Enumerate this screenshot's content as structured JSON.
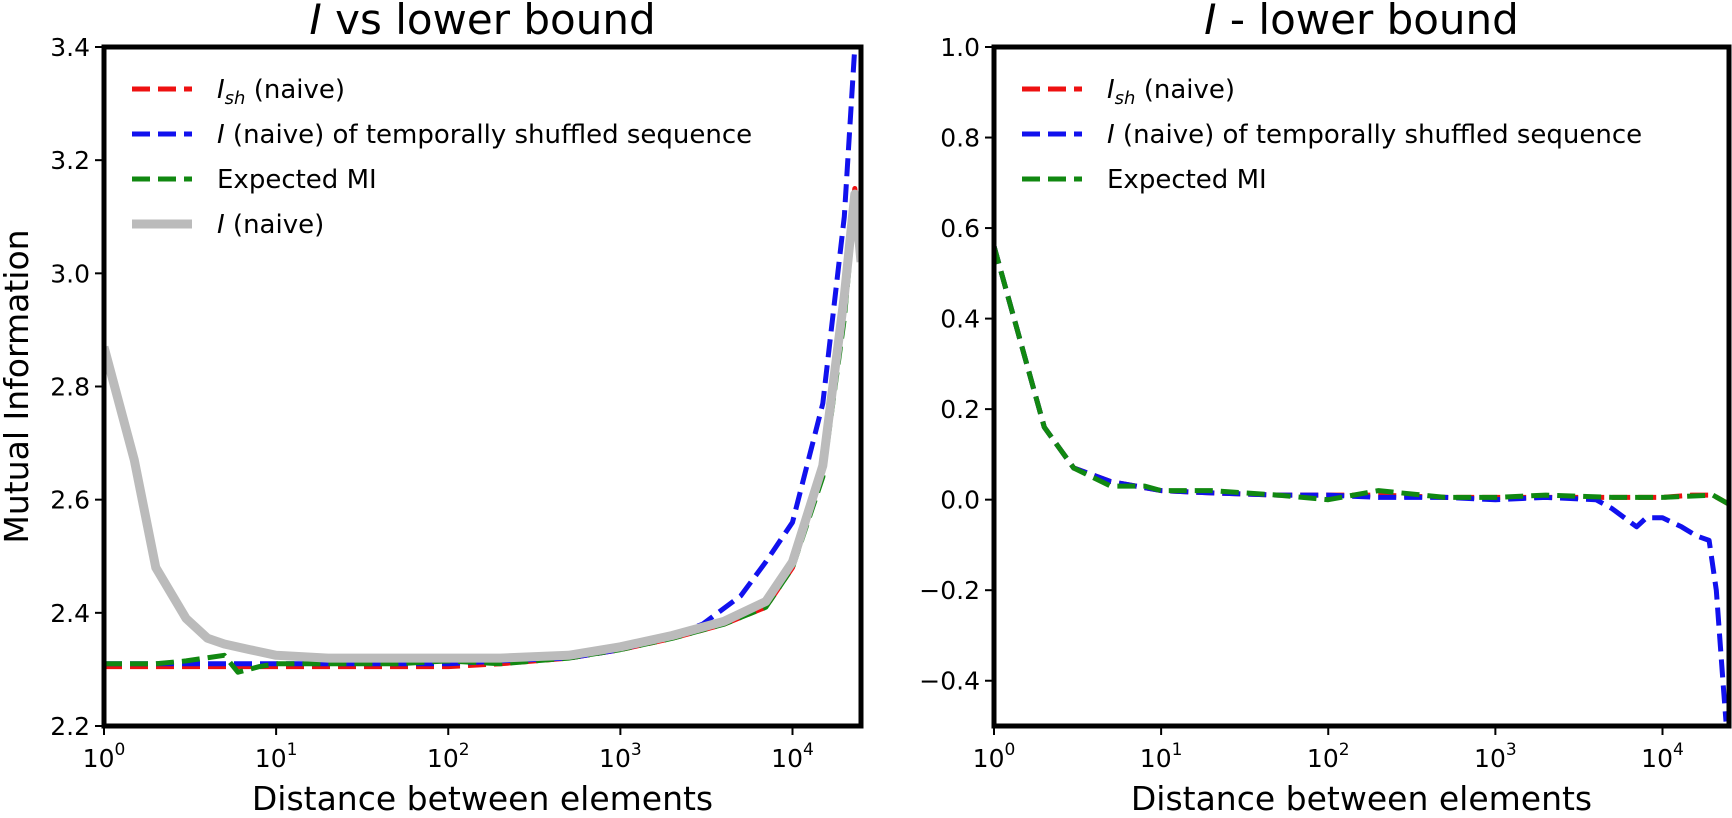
{
  "chart_data": [
    {
      "type": "line",
      "title_italic": "I",
      "title_rest": " vs lower bound",
      "xlabel": "Distance between elements",
      "ylabel": "Mutual Information",
      "xscale": "log",
      "xlim": [
        1,
        25000
      ],
      "ylim": [
        2.2,
        3.4
      ],
      "x_ticks": [
        {
          "base": "10",
          "exp": "0"
        },
        {
          "base": "10",
          "exp": "1"
        },
        {
          "base": "10",
          "exp": "2"
        },
        {
          "base": "10",
          "exp": "3"
        },
        {
          "base": "10",
          "exp": "4"
        }
      ],
      "y_ticks": [
        "2.2",
        "2.4",
        "2.6",
        "2.8",
        "3.0",
        "3.2",
        "3.4"
      ],
      "legend_position": "top-left",
      "legend": [
        {
          "italic": "I",
          "sub": "sh",
          "rest": " (naive)"
        },
        {
          "italic": "I",
          "sub": "",
          "rest": " (naive) of temporally shuffled sequence"
        },
        {
          "italic": "",
          "sub": "",
          "rest": "Expected MI"
        },
        {
          "italic": "I",
          "sub": "",
          "rest": " (naive)"
        }
      ],
      "series": [
        {
          "color": "#ee1111",
          "style": "dashed",
          "x": [
            1,
            2,
            3,
            5,
            8,
            10,
            20,
            50,
            100,
            200,
            500,
            1000,
            2000,
            4000,
            7000,
            10000,
            15000,
            20000,
            23000,
            25000
          ],
          "y": [
            2.305,
            2.305,
            2.305,
            2.305,
            2.305,
            2.305,
            2.305,
            2.305,
            2.305,
            2.31,
            2.32,
            2.335,
            2.355,
            2.38,
            2.41,
            2.48,
            2.65,
            2.95,
            3.15,
            3.05
          ]
        },
        {
          "color": "#1111ee",
          "style": "dashed",
          "x": [
            1,
            2,
            3,
            5,
            8,
            10,
            20,
            50,
            100,
            200,
            500,
            1000,
            2000,
            3000,
            5000,
            7000,
            10000,
            15000,
            20000,
            23000,
            25000
          ],
          "y": [
            2.31,
            2.31,
            2.31,
            2.31,
            2.31,
            2.31,
            2.31,
            2.31,
            2.31,
            2.315,
            2.32,
            2.335,
            2.36,
            2.38,
            2.43,
            2.49,
            2.56,
            2.77,
            3.1,
            3.4,
            3.45
          ]
        },
        {
          "color": "#118811",
          "style": "dashed",
          "x": [
            1,
            2,
            3,
            5,
            6,
            8,
            10,
            20,
            50,
            100,
            200,
            500,
            1000,
            2000,
            4000,
            7000,
            10000,
            15000,
            20000,
            23000,
            25000
          ],
          "y": [
            2.31,
            2.31,
            2.315,
            2.325,
            2.295,
            2.305,
            2.31,
            2.31,
            2.31,
            2.315,
            2.31,
            2.32,
            2.335,
            2.355,
            2.38,
            2.41,
            2.48,
            2.64,
            2.92,
            3.12,
            3.05
          ]
        },
        {
          "color": "#bbbbbb",
          "style": "solid",
          "x": [
            1,
            1.5,
            2,
            3,
            4,
            5,
            7,
            10,
            20,
            50,
            100,
            200,
            500,
            1000,
            2000,
            4000,
            7000,
            10000,
            15000,
            20000,
            23000,
            25000
          ],
          "y": [
            2.87,
            2.67,
            2.48,
            2.39,
            2.355,
            2.345,
            2.335,
            2.325,
            2.32,
            2.32,
            2.32,
            2.32,
            2.325,
            2.34,
            2.36,
            2.385,
            2.42,
            2.49,
            2.66,
            2.96,
            3.14,
            3.02
          ]
        }
      ]
    },
    {
      "type": "line",
      "title_italic": "I",
      "title_rest": " - lower bound",
      "xlabel": "Distance between elements",
      "ylabel": "",
      "xscale": "log",
      "xlim": [
        1,
        25000
      ],
      "ylim": [
        -0.5,
        1.0
      ],
      "x_ticks": [
        {
          "base": "10",
          "exp": "0"
        },
        {
          "base": "10",
          "exp": "1"
        },
        {
          "base": "10",
          "exp": "2"
        },
        {
          "base": "10",
          "exp": "3"
        },
        {
          "base": "10",
          "exp": "4"
        }
      ],
      "y_ticks": [
        "−0.4",
        "−0.2",
        "0.0",
        "0.2",
        "0.4",
        "0.6",
        "0.8",
        "1.0"
      ],
      "legend_position": "top-left",
      "legend": [
        {
          "italic": "I",
          "sub": "sh",
          "rest": " (naive)"
        },
        {
          "italic": "I",
          "sub": "",
          "rest": " (naive) of temporally shuffled sequence"
        },
        {
          "italic": "",
          "sub": "",
          "rest": "Expected MI"
        }
      ],
      "series": [
        {
          "color": "#ee1111",
          "style": "dashed",
          "x": [
            1,
            2,
            3,
            5,
            10,
            20,
            50,
            100,
            200,
            500,
            1000,
            2000,
            5000,
            10000,
            15000,
            20000,
            25000
          ],
          "y": [
            0.56,
            0.16,
            0.07,
            0.04,
            0.02,
            0.015,
            0.01,
            0.01,
            0.01,
            0.005,
            0.005,
            0.005,
            0.005,
            0.005,
            0.01,
            0.01,
            -0.01
          ]
        },
        {
          "color": "#1111ee",
          "style": "dashed",
          "x": [
            1,
            2,
            3,
            5,
            10,
            20,
            50,
            100,
            200,
            500,
            1000,
            2000,
            4000,
            5000,
            7000,
            8000,
            10000,
            13000,
            16000,
            19000,
            21000,
            23000,
            24000
          ],
          "y": [
            0.56,
            0.16,
            0.07,
            0.04,
            0.02,
            0.015,
            0.01,
            0.01,
            0.005,
            0.005,
            0.0,
            0.005,
            0.0,
            -0.02,
            -0.06,
            -0.04,
            -0.04,
            -0.06,
            -0.08,
            -0.09,
            -0.2,
            -0.4,
            -0.49
          ]
        },
        {
          "color": "#118811",
          "style": "dashed",
          "x": [
            1,
            2,
            3,
            5,
            8,
            10,
            20,
            50,
            100,
            200,
            500,
            1000,
            2000,
            5000,
            10000,
            20000,
            25000
          ],
          "y": [
            0.56,
            0.16,
            0.07,
            0.03,
            0.03,
            0.02,
            0.02,
            0.01,
            0.0,
            0.02,
            0.005,
            0.005,
            0.01,
            0.005,
            0.005,
            0.01,
            -0.01
          ]
        }
      ]
    }
  ]
}
